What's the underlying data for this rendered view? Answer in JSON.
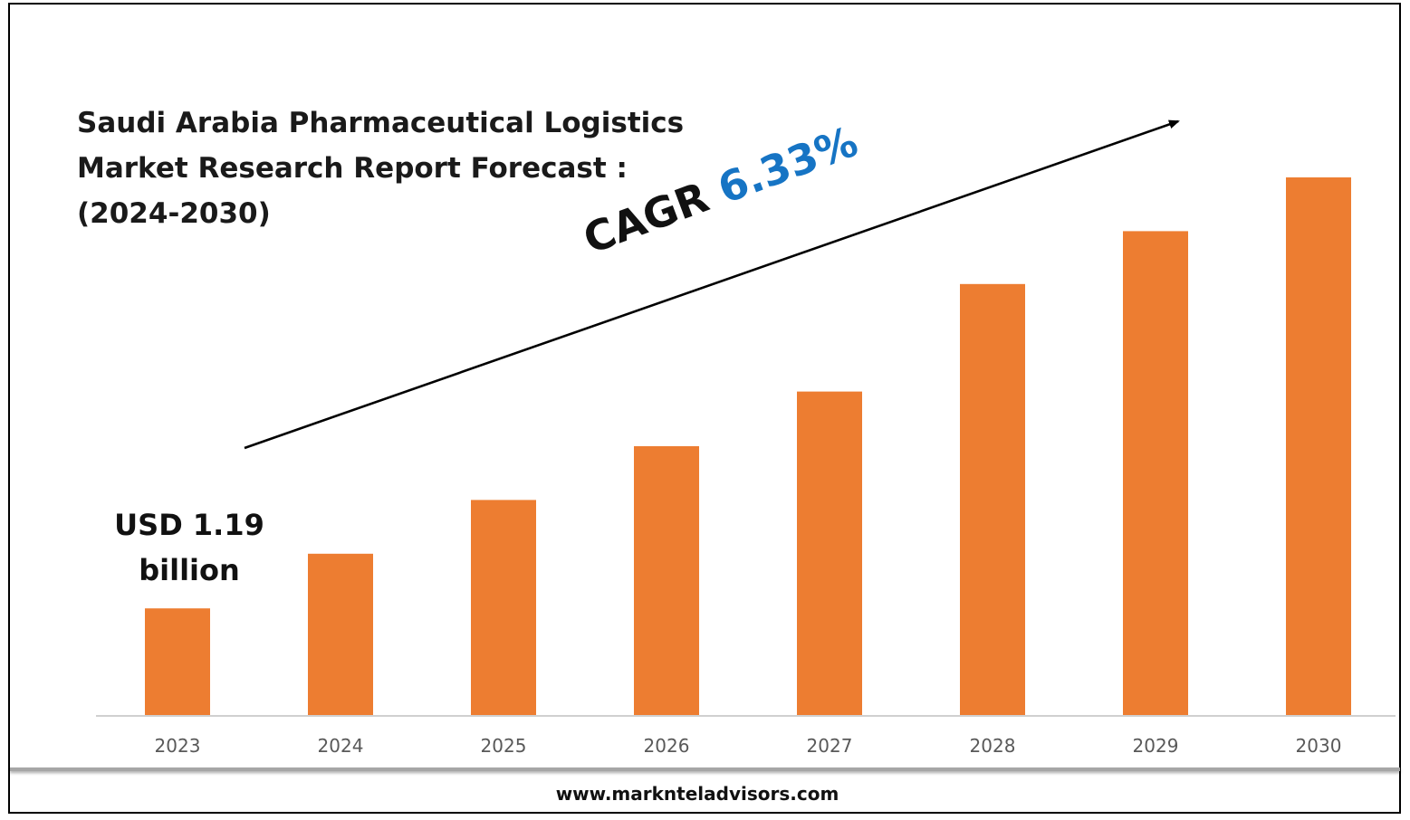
{
  "chart_data": {
    "type": "bar",
    "title": "Saudi Arabia Pharmaceutical Logistics Market Research Report Forecast : (2024-2030)",
    "title_lines": [
      "Saudi Arabia Pharmaceutical Logistics",
      "Market Research Report Forecast :",
      "(2024-2030)"
    ],
    "categories": [
      "2023",
      "2024",
      "2025",
      "2026",
      "2027",
      "2028",
      "2029",
      "2030"
    ],
    "values": [
      1.19,
      1.8,
      2.4,
      3.0,
      3.61,
      4.81,
      5.4,
      6.0
    ],
    "bar_color": "#ed7d31",
    "start_value_label": [
      "USD 1.19",
      "billion"
    ],
    "cagr": {
      "label": "CAGR",
      "value": "6.33%",
      "value_color": "#1674c4"
    },
    "xlabel": "",
    "ylabel": "",
    "grid": false,
    "legend": "none"
  },
  "footer": {
    "website": "www.marknteladvisors.com"
  }
}
